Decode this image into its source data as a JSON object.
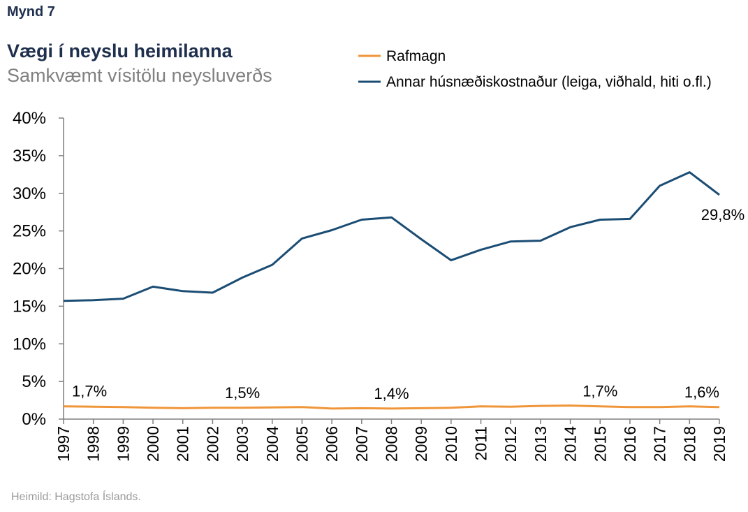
{
  "header": {
    "figure_label": "Mynd 7",
    "title": "Vægi í neyslu heimilanna",
    "subtitle": "Samkvæmt vísitölu neysluverðs"
  },
  "footer": {
    "source": "Heimild: Hagstofa Íslands."
  },
  "chart_data": {
    "type": "line",
    "title": "Vægi í neyslu heimilanna",
    "subtitle": "Samkvæmt vísitölu neysluverðs",
    "categories": [
      "1997",
      "1998",
      "1999",
      "2000",
      "2001",
      "2002",
      "2003",
      "2004",
      "2005",
      "2006",
      "2007",
      "2008",
      "2009",
      "2010",
      "2011",
      "2012",
      "2013",
      "2014",
      "2015",
      "2016",
      "2017",
      "2018",
      "2019"
    ],
    "y_ticks": [
      "0%",
      "5%",
      "10%",
      "15%",
      "20%",
      "25%",
      "30%",
      "35%",
      "40%"
    ],
    "ylim": [
      0,
      40
    ],
    "y_unit": "%",
    "grid": false,
    "legend_position": "top-right",
    "series": [
      {
        "name": "Rafmagn",
        "color": "#f0963a",
        "values": [
          1.7,
          1.65,
          1.6,
          1.5,
          1.45,
          1.5,
          1.5,
          1.55,
          1.6,
          1.4,
          1.45,
          1.4,
          1.45,
          1.5,
          1.7,
          1.65,
          1.75,
          1.8,
          1.7,
          1.6,
          1.6,
          1.7,
          1.6
        ]
      },
      {
        "name": "Annar húsnæðiskostnaður (leiga, viðhald, hiti o.fl.)",
        "color": "#1b4d74",
        "values": [
          15.7,
          15.8,
          16.0,
          17.6,
          17.0,
          16.8,
          18.8,
          20.5,
          24.0,
          25.1,
          26.5,
          26.8,
          23.9,
          21.1,
          22.5,
          23.6,
          23.7,
          25.5,
          26.5,
          26.6,
          31.0,
          32.8,
          29.8
        ]
      }
    ],
    "annotations": [
      {
        "text": "1,7%",
        "x": "1997",
        "series": "Rafmagn"
      },
      {
        "text": "1,5%",
        "x": "2003",
        "series": "Rafmagn"
      },
      {
        "text": "1,4%",
        "x": "2008",
        "series": "Rafmagn"
      },
      {
        "text": "1,7%",
        "x": "2015",
        "series": "Rafmagn"
      },
      {
        "text": "1,6%",
        "x": "2019",
        "series": "Rafmagn"
      },
      {
        "text": "29,8%",
        "x": "2019",
        "series": "Annar húsnæðiskostnaður (leiga, viðhald, hiti o.fl.)"
      }
    ]
  }
}
